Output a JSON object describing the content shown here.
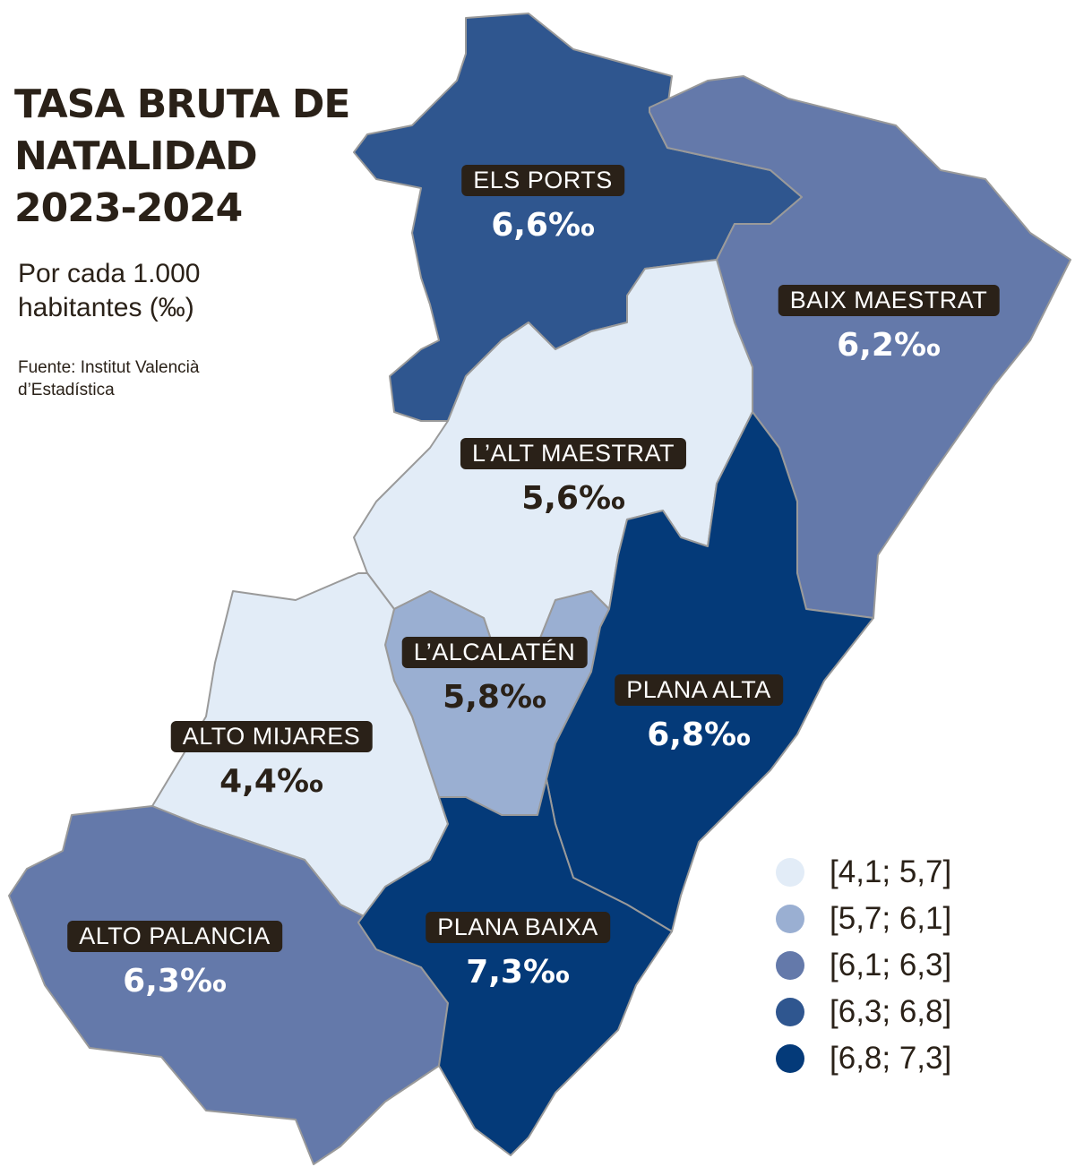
{
  "title_lines": [
    "TASA BRUTA  DE",
    "NATALIDAD",
    "2023-2024"
  ],
  "subtitle_lines": [
    "Por cada 1.000",
    "habitantes (‰)"
  ],
  "source_lines": [
    "Fuente: Institut Valencià",
    "d’Estadística"
  ],
  "legend": [
    {
      "label": "[4,1; 5,7]",
      "color": "#e2ecf7"
    },
    {
      "label": "[5,7; 6,1]",
      "color": "#9aafd2"
    },
    {
      "label": "[6,1; 6,3]",
      "color": "#6479aa"
    },
    {
      "label": "[6,3; 6,8]",
      "color": "#2f568f"
    },
    {
      "label": "[6,8; 7,3]",
      "color": "#043a79"
    }
  ],
  "regions": [
    {
      "name": "ELS PORTS",
      "value": "6,6‰",
      "rate": 6.6,
      "class": 3
    },
    {
      "name": "BAIX MAESTRAT",
      "value": "6,2‰",
      "rate": 6.2,
      "class": 2
    },
    {
      "name": "L’ALT MAESTRAT",
      "value": "5,6‰",
      "rate": 5.6,
      "class": 0
    },
    {
      "name": "L’ALCALATÉN",
      "value": "5,8‰",
      "rate": 5.8,
      "class": 1
    },
    {
      "name": "PLANA ALTA",
      "value": "6,8‰",
      "rate": 6.8,
      "class": 4
    },
    {
      "name": "ALTO MIJARES",
      "value": "4,4‰",
      "rate": 4.4,
      "class": 0
    },
    {
      "name": "ALTO PALANCIA",
      "value": "6,3‰",
      "rate": 6.3,
      "class": 2
    },
    {
      "name": "PLANA BAIXA",
      "value": "7,3‰",
      "rate": 7.3,
      "class": 4
    }
  ]
}
